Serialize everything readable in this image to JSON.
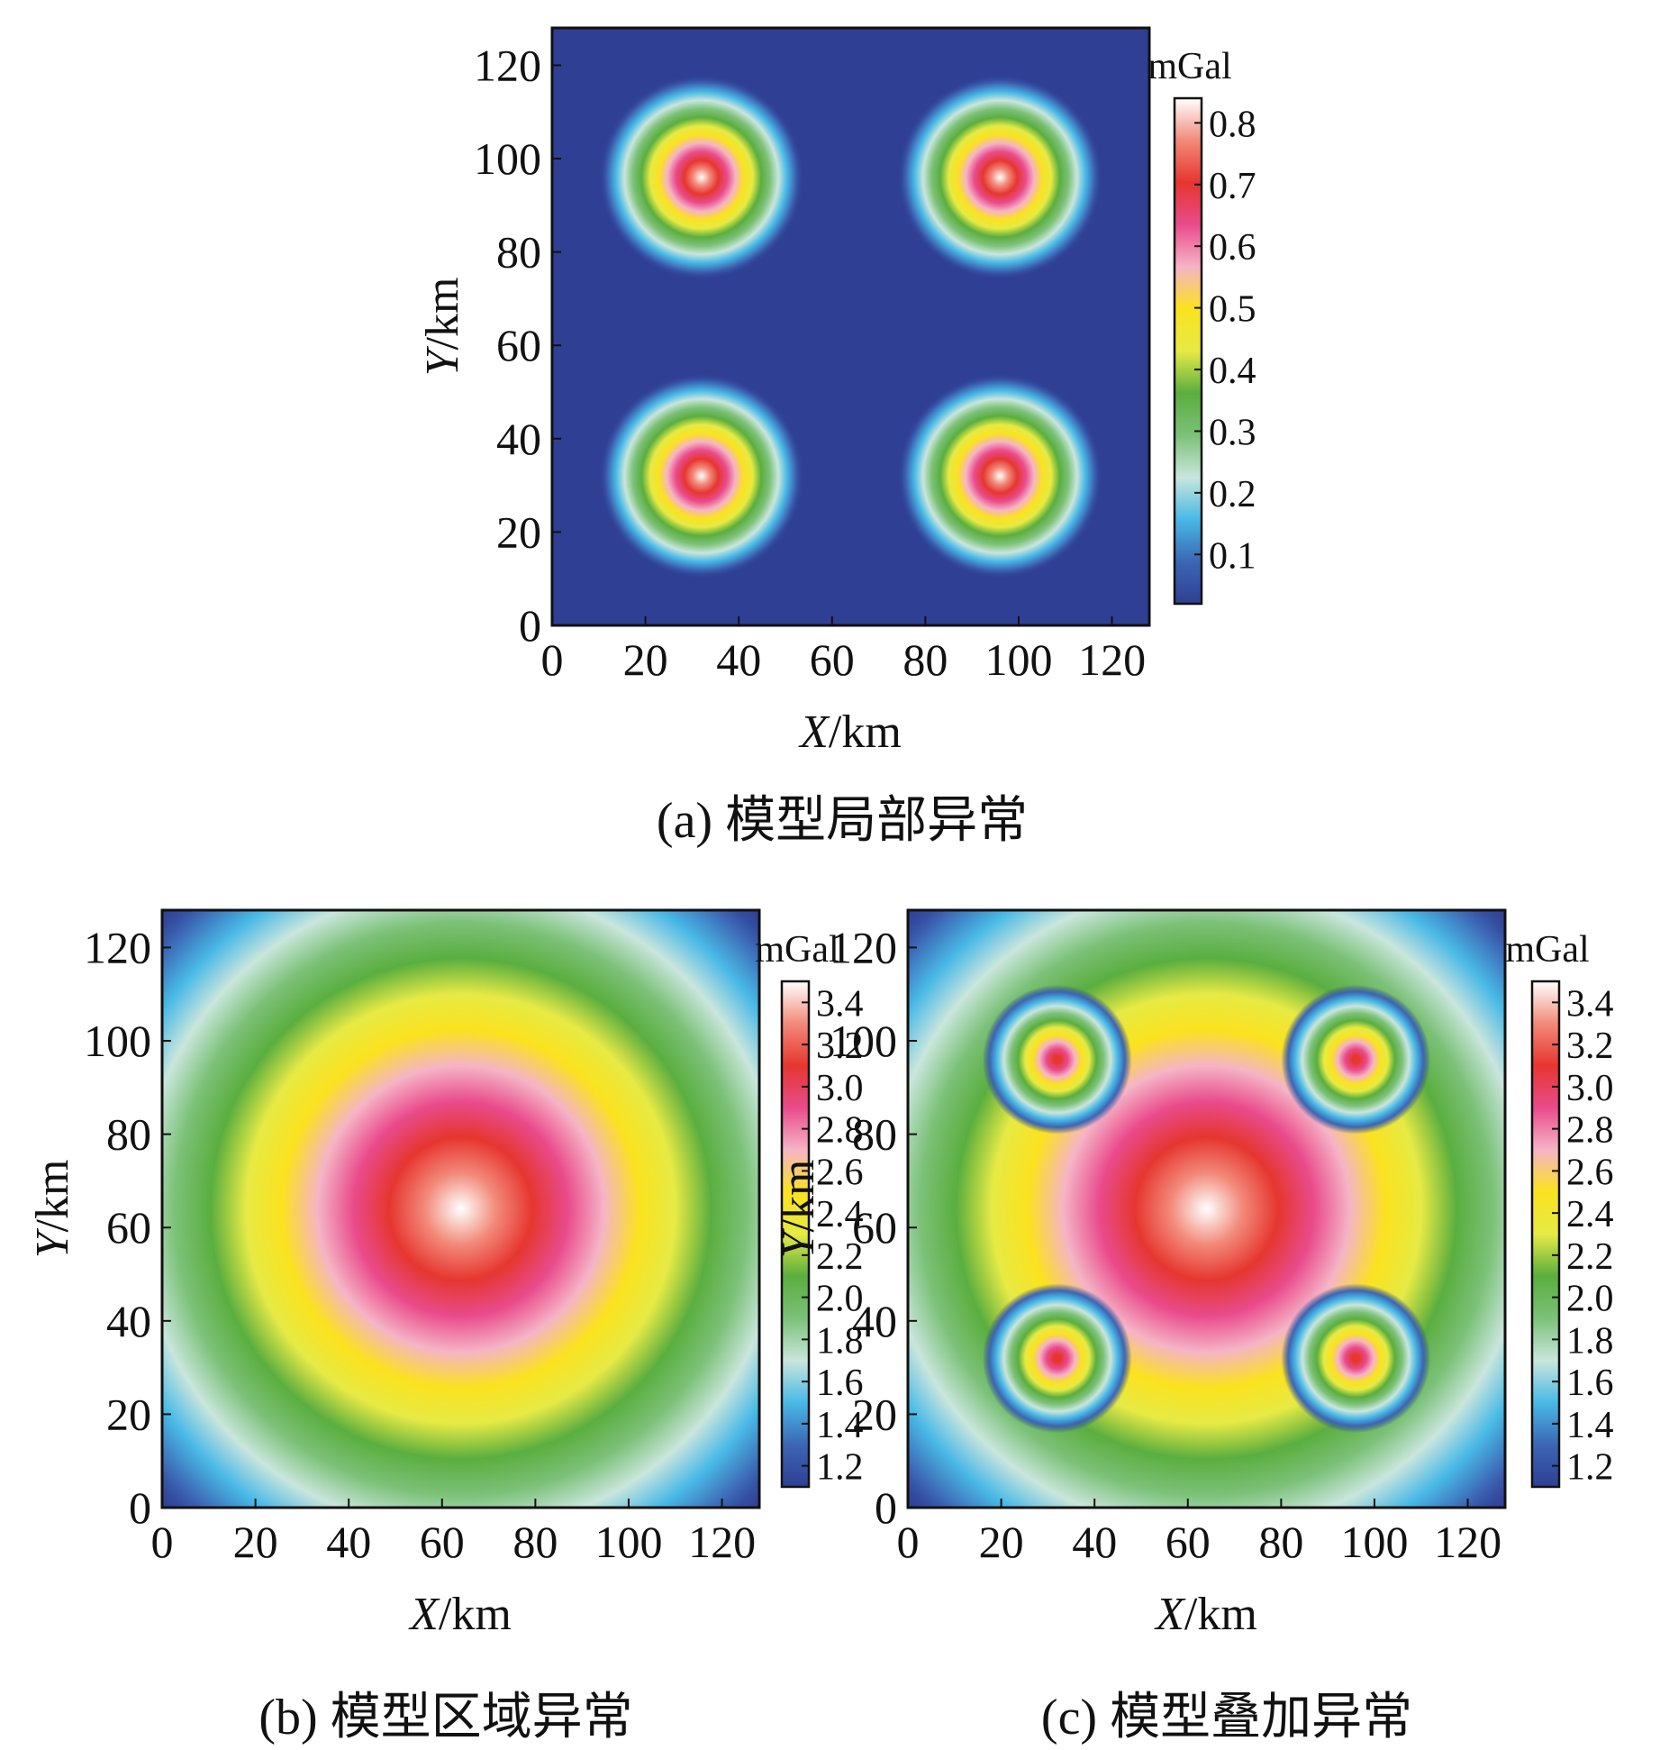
{
  "colormap": {
    "stops": [
      "#2f3f94",
      "#3c66b4",
      "#48b9e6",
      "#c9e6dc",
      "#7cc178",
      "#5aae3f",
      "#e6ea45",
      "#fbe21e",
      "#f5b4c6",
      "#e94b8b",
      "#e6362f",
      "#f28a7a",
      "#ffffff"
    ],
    "frame_color": "#111111"
  },
  "chart_data": [
    {
      "id": "a",
      "type": "heatmap",
      "caption": "(a) 模型局部异常",
      "xlabel_italic": "X",
      "xlabel_unit": "/km",
      "ylabel_italic": "Y",
      "ylabel_unit": "/km",
      "xlim": [
        0,
        128
      ],
      "ylim": [
        0,
        128
      ],
      "xticks": [
        0,
        20,
        40,
        60,
        80,
        100,
        120
      ],
      "yticks": [
        0,
        20,
        40,
        60,
        80,
        100,
        120
      ],
      "colorbar_label": "mGal",
      "colorbar_range": [
        0.02,
        0.84
      ],
      "colorbar_ticks": [
        "0.1",
        "0.2",
        "0.3",
        "0.4",
        "0.5",
        "0.6",
        "0.7",
        "0.8"
      ],
      "sources": [
        {
          "x": 32,
          "y": 32,
          "peak": 0.84
        },
        {
          "x": 96,
          "y": 32,
          "peak": 0.84
        },
        {
          "x": 32,
          "y": 96,
          "peak": 0.84
        },
        {
          "x": 96,
          "y": 96,
          "peak": 0.84
        }
      ]
    },
    {
      "id": "b",
      "type": "heatmap",
      "caption": "(b) 模型区域异常",
      "xlabel_italic": "X",
      "xlabel_unit": "/km",
      "ylabel_italic": "Y",
      "ylabel_unit": "/km",
      "xlim": [
        0,
        128
      ],
      "ylim": [
        0,
        128
      ],
      "xticks": [
        0,
        20,
        40,
        60,
        80,
        100,
        120
      ],
      "yticks": [
        0,
        20,
        40,
        60,
        80,
        100,
        120
      ],
      "colorbar_label": "mGal",
      "colorbar_range": [
        1.1,
        3.5
      ],
      "colorbar_ticks": [
        "1.2",
        "1.4",
        "1.6",
        "1.8",
        "2.0",
        "2.2",
        "2.4",
        "2.6",
        "2.8",
        "3.0",
        "3.2",
        "3.4"
      ],
      "sources": [
        {
          "x": 64,
          "y": 64,
          "peak": 3.5
        }
      ]
    },
    {
      "id": "c",
      "type": "heatmap",
      "caption": "(c) 模型叠加异常",
      "xlabel_italic": "X",
      "xlabel_unit": "/km",
      "ylabel_italic": "Y",
      "ylabel_unit": "/km",
      "xlim": [
        0,
        128
      ],
      "ylim": [
        0,
        128
      ],
      "xticks": [
        0,
        20,
        40,
        60,
        80,
        100,
        120
      ],
      "yticks": [
        0,
        20,
        40,
        60,
        80,
        100,
        120
      ],
      "colorbar_label": "mGal",
      "colorbar_range": [
        1.1,
        3.5
      ],
      "colorbar_ticks": [
        "1.2",
        "1.4",
        "1.6",
        "1.8",
        "2.0",
        "2.2",
        "2.4",
        "2.6",
        "2.8",
        "3.0",
        "3.2",
        "3.4"
      ],
      "sources": [
        {
          "x": 64,
          "y": 64,
          "peak": 3.5
        },
        {
          "x": 32,
          "y": 32,
          "peak": 3.2
        },
        {
          "x": 96,
          "y": 32,
          "peak": 3.2
        },
        {
          "x": 32,
          "y": 96,
          "peak": 3.2
        },
        {
          "x": 96,
          "y": 96,
          "peak": 3.2
        }
      ]
    }
  ]
}
